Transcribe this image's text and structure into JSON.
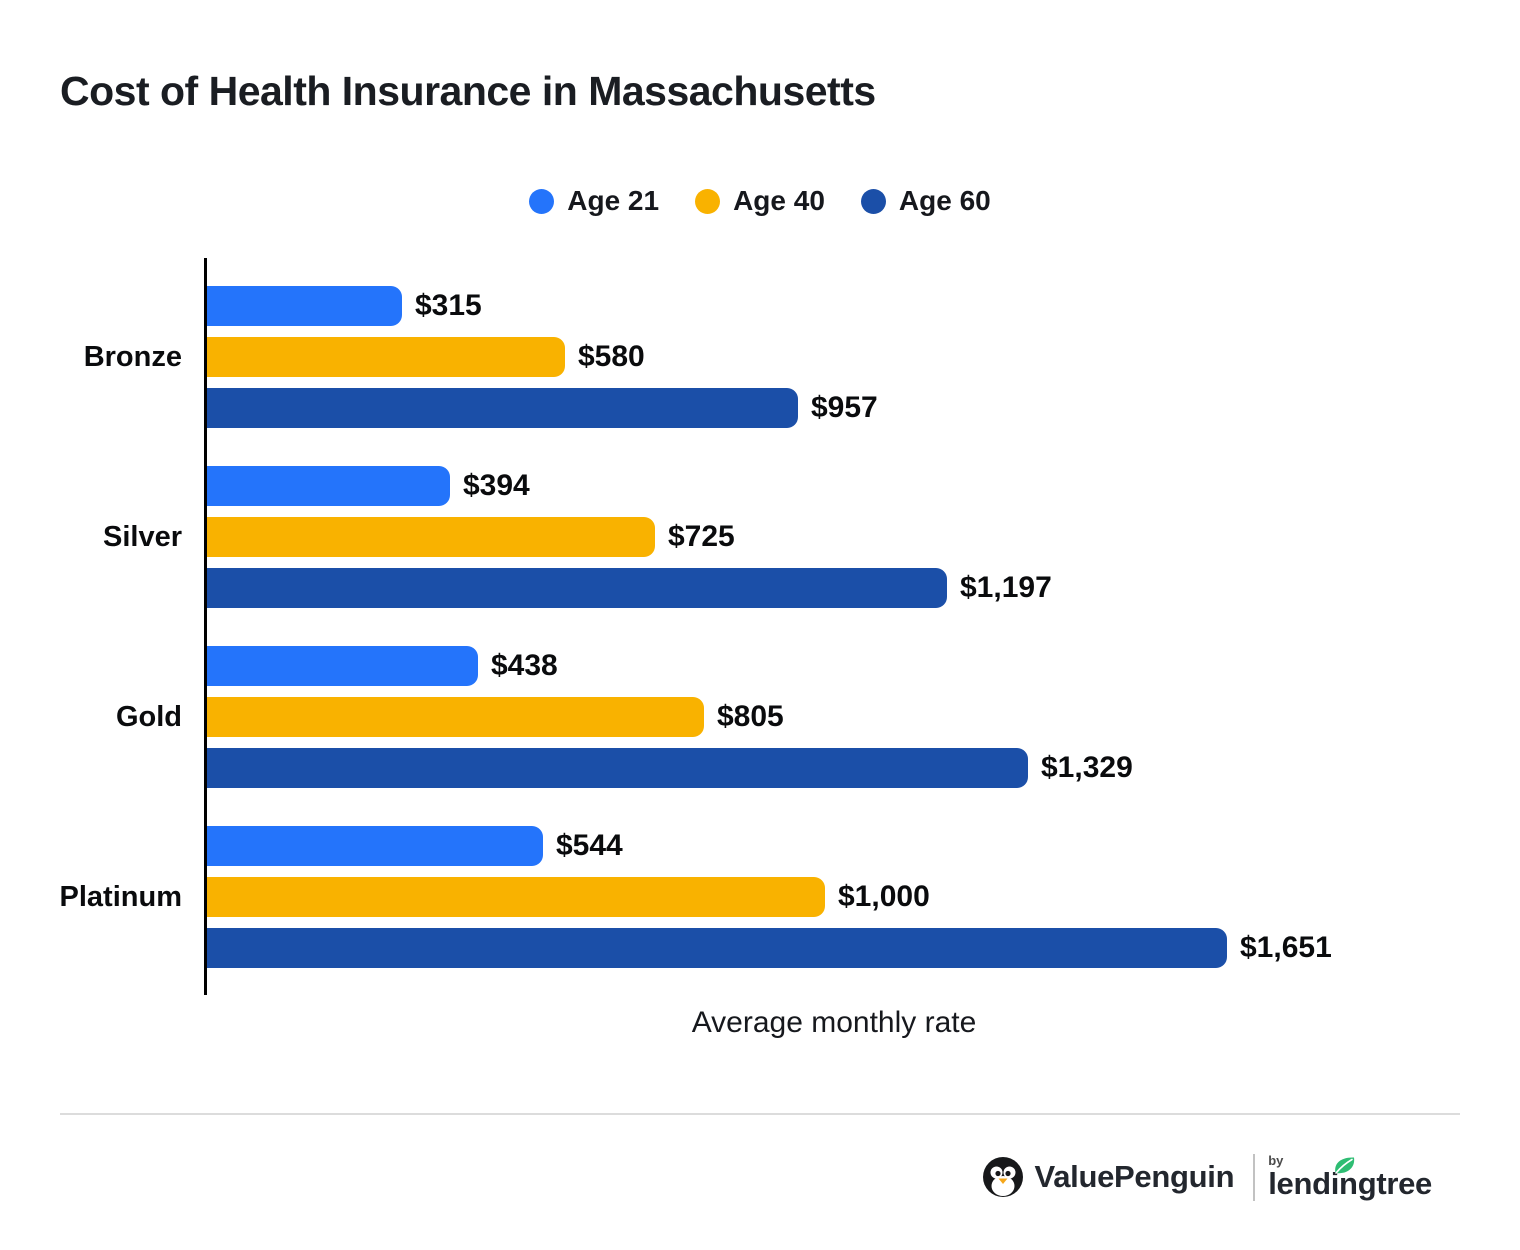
{
  "title": "Cost of Health Insurance in Massachusetts",
  "chart_data": {
    "type": "bar",
    "orientation": "horizontal",
    "title": "Cost of Health Insurance in Massachusetts",
    "xlabel": "Average monthly rate",
    "categories": [
      "Bronze",
      "Silver",
      "Gold",
      "Platinum"
    ],
    "series": [
      {
        "name": "Age 21",
        "color": "#2474FB",
        "values": [
          315,
          394,
          438,
          544
        ],
        "labels": [
          "$315",
          "$394",
          "$438",
          "$544"
        ]
      },
      {
        "name": "Age 40",
        "color": "#F9B200",
        "values": [
          580,
          725,
          805,
          1000
        ],
        "labels": [
          "$580",
          "$725",
          "$805",
          "$1,000"
        ]
      },
      {
        "name": "Age 60",
        "color": "#1B4FA8",
        "values": [
          957,
          1197,
          1329,
          1651
        ],
        "labels": [
          "$957",
          "$1,197",
          "$1,329",
          "$1,651"
        ]
      }
    ],
    "value_prefix": "$",
    "xlim": [
      0,
      1700
    ],
    "grid": false,
    "legend_position": "top",
    "axis_color": "#000000"
  },
  "footer": {
    "brand": "ValuePenguin",
    "by": "by",
    "partner": "lendingtree"
  },
  "colors": {
    "age21_blue": "#2474FB",
    "age40_gold": "#F9B200",
    "age60_dark_blue": "#1B4FA8",
    "divider_gray": "#DCDCDC",
    "leaf_green": "#2EBD73",
    "beak_orange": "#F5A71B",
    "text_dark": "#16181D"
  }
}
